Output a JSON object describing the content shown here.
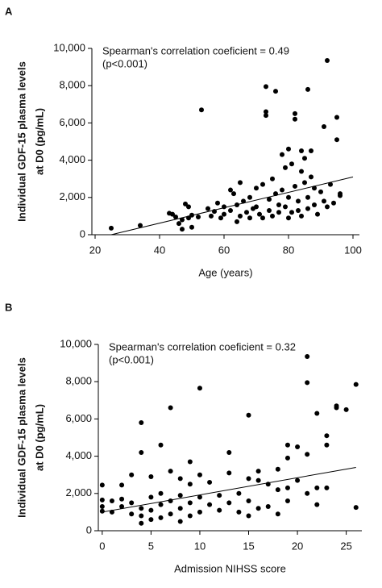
{
  "chart_data": [
    {
      "type": "scatter",
      "panel": "A",
      "annotation": [
        "Spearman's correlation coeficient = 0.49",
        "(p<0.001)"
      ],
      "ylabel": [
        "Individual GDF-15 plasma levels",
        "at D0 (pg/mL)"
      ],
      "xlabel": "Age (years)",
      "xlim": [
        19,
        102
      ],
      "xticks": [
        20,
        40,
        60,
        80,
        100
      ],
      "ylim": [
        0,
        10000
      ],
      "yticks": [
        0,
        {
          "value": 2000,
          "label": "2,000"
        },
        {
          "value": 4000,
          "label": "4,000"
        },
        {
          "value": 6000,
          "label": "6,000"
        },
        {
          "value": 8000,
          "label": "8,000"
        },
        {
          "value": 10000,
          "label": "10,000"
        }
      ],
      "color": "#000000",
      "x": [
        25,
        34,
        43,
        44,
        45,
        46,
        47,
        47,
        48,
        49,
        49,
        50,
        50,
        52,
        53,
        55,
        56,
        57,
        58,
        59,
        60,
        60,
        62,
        62,
        63,
        64,
        64,
        65,
        65,
        66,
        67,
        68,
        68,
        69,
        70,
        70,
        71,
        72,
        72,
        73,
        73,
        73,
        74,
        74,
        75,
        75,
        76,
        76,
        77,
        77,
        78,
        78,
        79,
        79,
        80,
        80,
        80,
        81,
        81,
        82,
        82,
        82,
        83,
        83,
        84,
        84,
        84,
        85,
        85,
        86,
        86,
        86,
        87,
        87,
        88,
        88,
        89,
        90,
        91,
        91,
        92,
        92,
        93,
        94,
        95,
        95,
        96,
        96
      ],
      "values": [
        350,
        500,
        1150,
        1100,
        950,
        600,
        300,
        800,
        1650,
        1500,
        900,
        1050,
        400,
        950,
        6700,
        1400,
        1000,
        1250,
        1700,
        900,
        1500,
        1100,
        1300,
        2400,
        2200,
        1600,
        700,
        2800,
        1000,
        1800,
        1200,
        2000,
        900,
        1400,
        1500,
        2500,
        1100,
        2700,
        900,
        7950,
        6600,
        6400,
        1900,
        1300,
        3000,
        1000,
        7700,
        2200,
        1600,
        1200,
        4300,
        2400,
        3600,
        1500,
        4600,
        2000,
        900,
        3800,
        1200,
        6500,
        6200,
        2600,
        1800,
        1300,
        4500,
        3400,
        1000,
        4100,
        2800,
        7800,
        2000,
        1400,
        4500,
        3100,
        2500,
        1600,
        1100,
        2300,
        5800,
        1800,
        9350,
        1500,
        2700,
        1700,
        6300,
        5100,
        2100,
        2200
      ],
      "fit": {
        "x": [
          25,
          100
        ],
        "values": [
          0,
          3100
        ]
      }
    },
    {
      "type": "scatter",
      "panel": "B",
      "annotation": [
        "Spearman's correlation coeficient = 0.32",
        "(p<0.001)"
      ],
      "ylabel": [
        "Individual GDF-15 plasma levels",
        "at D0 (pg/mL)"
      ],
      "xlabel": "Admission NIHSS score",
      "xlim": [
        -0.4,
        26.6
      ],
      "xticks": [
        0,
        5,
        10,
        15,
        20,
        25
      ],
      "ylim": [
        0,
        10000
      ],
      "yticks": [
        0,
        {
          "value": 2000,
          "label": "2,000"
        },
        {
          "value": 4000,
          "label": "4,000"
        },
        {
          "value": 6000,
          "label": "6,000"
        },
        {
          "value": 8000,
          "label": "8,000"
        },
        {
          "value": 10000,
          "label": "10,000"
        }
      ],
      "color": "#000000",
      "x": [
        0,
        0,
        0,
        0,
        1,
        1,
        2,
        2,
        2,
        3,
        3,
        3,
        4,
        4,
        4,
        4,
        4,
        5,
        5,
        5,
        5,
        6,
        6,
        6,
        6,
        7,
        7,
        7,
        7,
        8,
        8,
        8,
        8,
        9,
        9,
        9,
        9,
        10,
        10,
        10,
        10,
        11,
        11,
        12,
        12,
        13,
        13,
        13,
        14,
        14,
        15,
        15,
        15,
        15,
        16,
        16,
        16,
        17,
        17,
        18,
        18,
        18,
        19,
        19,
        19,
        19,
        20,
        20,
        21,
        21,
        21,
        21,
        22,
        22,
        22,
        23,
        23,
        23,
        24,
        24,
        25,
        26,
        26
      ],
      "values": [
        2450,
        1650,
        1300,
        1050,
        1600,
        1000,
        1700,
        1300,
        2450,
        1500,
        900,
        3000,
        5800,
        4200,
        1200,
        800,
        400,
        2900,
        1800,
        1100,
        600,
        4600,
        2000,
        1400,
        700,
        6600,
        3200,
        1600,
        900,
        2800,
        1900,
        1200,
        500,
        3700,
        2500,
        1500,
        800,
        7650,
        3000,
        1800,
        1000,
        2600,
        1400,
        1900,
        1100,
        4200,
        3100,
        1500,
        2000,
        1000,
        6200,
        2800,
        1600,
        800,
        3200,
        2700,
        1200,
        2500,
        1300,
        3300,
        2200,
        900,
        4600,
        3900,
        2300,
        1600,
        4500,
        2700,
        9350,
        7950,
        4100,
        2000,
        6300,
        2300,
        1400,
        5100,
        4600,
        2300,
        6700,
        6600,
        6500,
        7850,
        1250
      ],
      "fit": {
        "x": [
          0,
          26
        ],
        "values": [
          1000,
          3400
        ]
      }
    }
  ]
}
